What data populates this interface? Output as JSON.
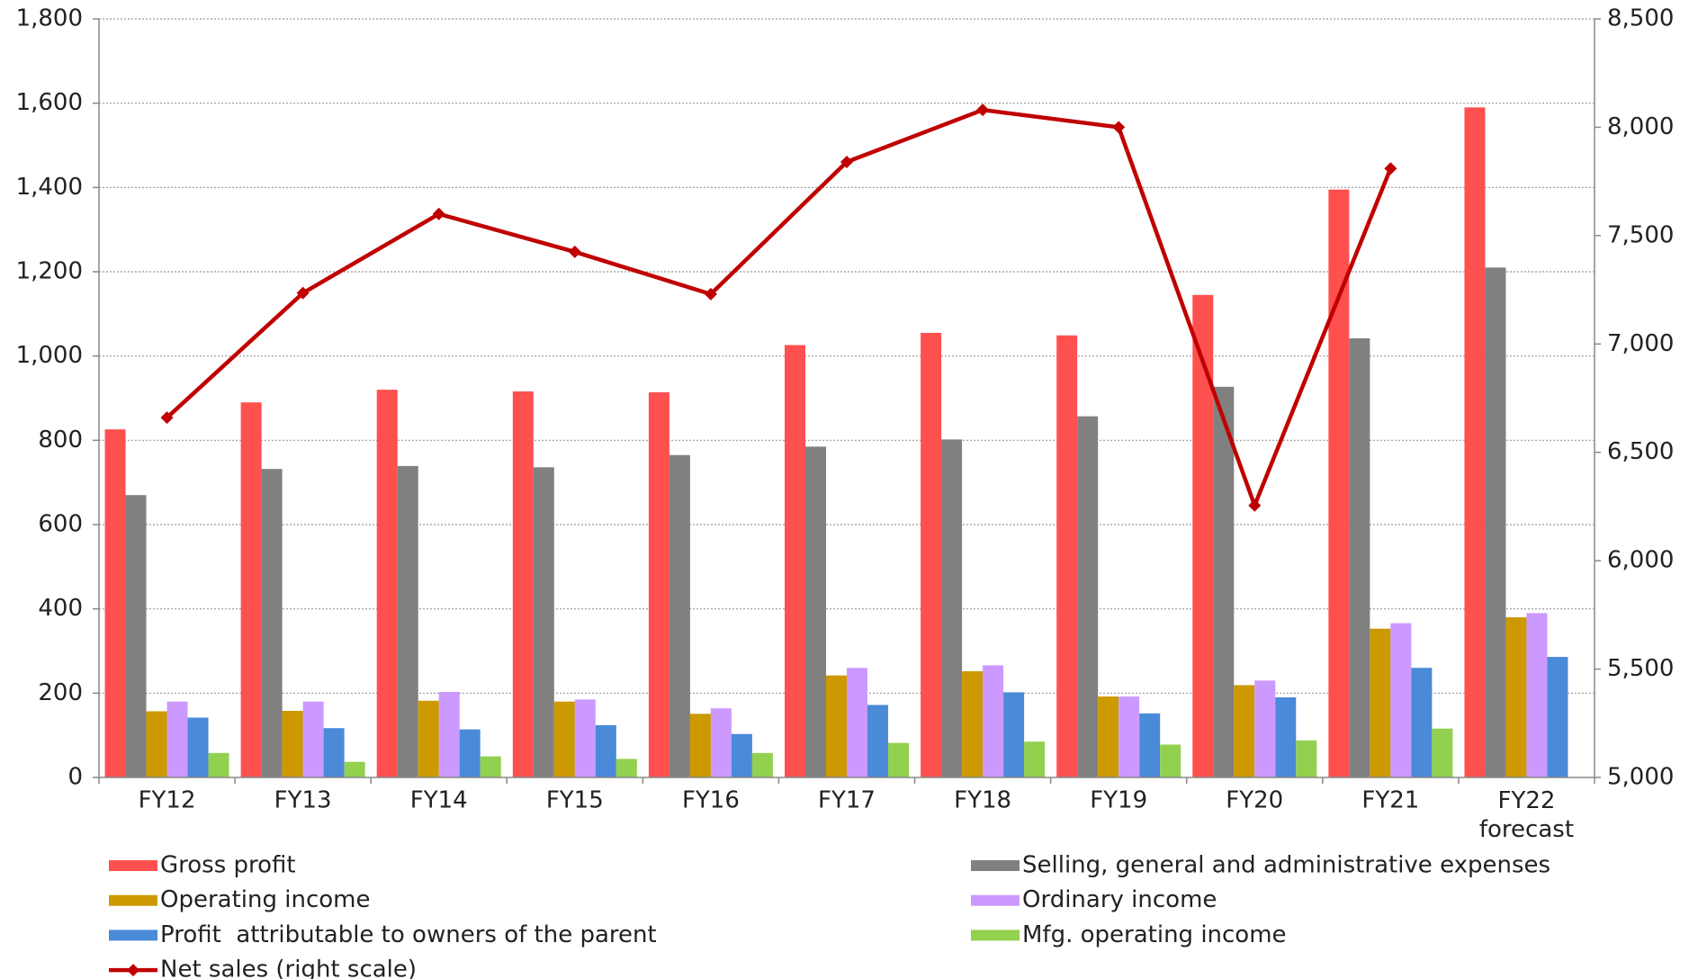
{
  "chart_data": {
    "type": "bar",
    "categories": [
      "FY12",
      "FY13",
      "FY14",
      "FY15",
      "FY16",
      "FY17",
      "FY18",
      "FY19",
      "FY20",
      "FY21",
      "FY22 forecast"
    ],
    "series": [
      {
        "name": "Gross profit",
        "color": "#ff5050",
        "values": [
          826,
          890,
          920,
          916,
          914,
          1026,
          1055,
          1049,
          1145,
          1395,
          1590
        ]
      },
      {
        "name": "Selling, general and administrative expenses",
        "color": "#808080",
        "values": [
          670,
          732,
          739,
          736,
          765,
          785,
          802,
          857,
          927,
          1042,
          1210
        ]
      },
      {
        "name": "Operating income",
        "color": "#cc9900",
        "values": [
          157,
          158,
          182,
          180,
          151,
          242,
          252,
          192,
          219,
          353,
          380
        ]
      },
      {
        "name": "Ordinary income",
        "color": "#cc99ff",
        "values": [
          180,
          180,
          203,
          185,
          164,
          260,
          266,
          192,
          230,
          366,
          390
        ]
      },
      {
        "name": "Profit  attributable to owners of the parent",
        "color": "#4a8ad8",
        "values": [
          142,
          117,
          114,
          124,
          103,
          172,
          202,
          152,
          190,
          260,
          286
        ]
      },
      {
        "name": "Mfg. operating income",
        "color": "#92d050",
        "values": [
          58,
          37,
          50,
          44,
          58,
          82,
          85,
          78,
          88,
          116,
          null
        ]
      },
      {
        "name": "Net sales (right scale)",
        "color": "#c00000",
        "type": "line",
        "axis": "y2",
        "values": [
          6660,
          7235,
          7600,
          7425,
          7230,
          7840,
          8080,
          8000,
          6255,
          7810,
          null
        ]
      }
    ],
    "ylim": [
      0,
      1800
    ],
    "yticks": [
      0,
      200,
      400,
      600,
      800,
      {
        "value": 1000,
        "label": "1,000"
      },
      {
        "value": 1200,
        "label": "1,200"
      },
      {
        "value": 1400,
        "label": "1,400"
      },
      {
        "value": 1600,
        "label": "1,600"
      },
      {
        "value": 1800,
        "label": "1,800"
      }
    ],
    "y2lim": [
      5000,
      8500
    ],
    "y2ticks": [
      {
        "value": 5000,
        "label": "5,000"
      },
      {
        "value": 5500,
        "label": "5,500"
      },
      {
        "value": 6000,
        "label": "6,000"
      },
      {
        "value": 6500,
        "label": "6,500"
      },
      {
        "value": 7000,
        "label": "7,000"
      },
      {
        "value": 7500,
        "label": "7,500"
      },
      {
        "value": 8000,
        "label": "8,000"
      },
      {
        "value": 8500,
        "label": "8,500"
      }
    ],
    "grid": true
  }
}
